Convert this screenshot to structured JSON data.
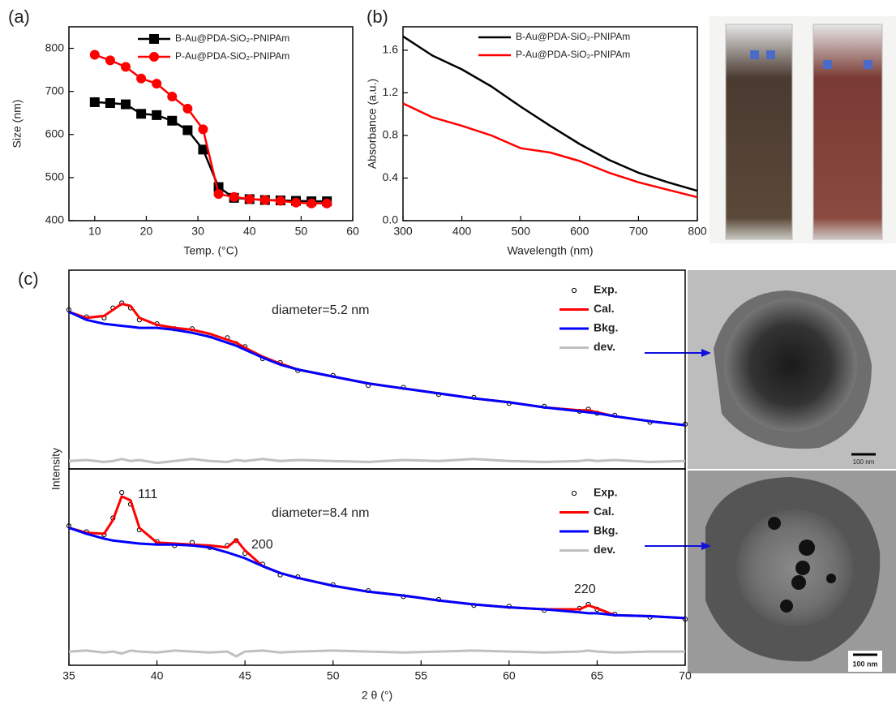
{
  "chart_data": [
    {
      "type": "line",
      "label": "(a)",
      "x_label": "Temp. (°C)",
      "y_label": "Size (nm)",
      "x": [
        10,
        13,
        16,
        19,
        22,
        25,
        28,
        31,
        34,
        37,
        40,
        43,
        46,
        49,
        52,
        55
      ],
      "xlim": [
        5,
        60
      ],
      "xticks": [
        10,
        20,
        30,
        40,
        50,
        60
      ],
      "ylim": [
        400,
        850
      ],
      "yticks": [
        400,
        500,
        600,
        700,
        800
      ],
      "legend": "upper right",
      "series": [
        {
          "name": "B-Au@PDA-SiO₂-PNIPAm",
          "color": "#000000",
          "marker": "square",
          "line_width": 2.5,
          "values": [
            675,
            673,
            670,
            648,
            645,
            632,
            610,
            565,
            478,
            453,
            450,
            448,
            447,
            446,
            445,
            445
          ]
        },
        {
          "name": "P-Au@PDA-SiO₂-PNIPAm",
          "color": "#ff0000",
          "marker": "circle",
          "line_width": 2.5,
          "values": [
            785,
            772,
            757,
            730,
            718,
            688,
            660,
            612,
            462,
            455,
            450,
            448,
            446,
            442,
            440,
            440
          ]
        }
      ]
    },
    {
      "type": "line",
      "label": "(b)",
      "x_label": "Wavelength (nm)",
      "y_label": "Absorbance (a.u.)",
      "x": [
        300,
        350,
        400,
        450,
        500,
        550,
        600,
        650,
        700,
        750,
        800
      ],
      "xlim": [
        300,
        800
      ],
      "xticks": [
        300,
        400,
        500,
        600,
        700,
        800
      ],
      "ylim": [
        0,
        1.82
      ],
      "yticks": [
        {
          "value": 0,
          "label": "0.0"
        },
        0.4,
        0.8,
        1.2,
        1.6
      ],
      "legend": "upper right",
      "series": [
        {
          "name": "B-Au@PDA-SiO₂-PNIPAm",
          "color": "#000000",
          "line_width": 2.5,
          "values": [
            1.73,
            1.55,
            1.42,
            1.26,
            1.07,
            0.89,
            0.72,
            0.57,
            0.45,
            0.36,
            0.28
          ]
        },
        {
          "name": "P-Au@PDA-SiO₂-PNIPAm",
          "color": "#ff0000",
          "line_width": 2.5,
          "values": [
            1.1,
            0.97,
            0.89,
            0.8,
            0.68,
            0.64,
            0.56,
            0.45,
            0.36,
            0.29,
            0.22
          ]
        }
      ]
    },
    {
      "type": "line",
      "label": "(c)",
      "annotations": [
        "diameter=5.2 nm"
      ],
      "x": [
        35,
        36,
        37,
        37.5,
        38,
        38.5,
        39,
        40,
        41,
        42,
        43,
        44,
        44.5,
        45,
        46,
        47,
        48,
        50,
        52,
        54,
        56,
        58,
        60,
        62,
        64,
        64.5,
        65,
        66,
        68,
        70
      ],
      "xlim": [
        35,
        70
      ],
      "ylim": [
        0,
        100
      ],
      "legend": "upper right",
      "series": [
        {
          "name": "Exp.",
          "color": "#000000",
          "marker": "open-circle",
          "line": false,
          "values": [
            80,
            76.5,
            76,
            81,
            83.5,
            81,
            75,
            73,
            70.5,
            70.5,
            67,
            66,
            63,
            61.5,
            55.5,
            53.5,
            49.5,
            47,
            42,
            41,
            37.5,
            36,
            33,
            31.5,
            29,
            30,
            28,
            27,
            23.5,
            22.5
          ]
        },
        {
          "name": "Cal.",
          "color": "#ff0000",
          "line_width": 3,
          "values": [
            79,
            76,
            77,
            80,
            83,
            82,
            76,
            72.5,
            71,
            70,
            68,
            65,
            63.5,
            61,
            56.5,
            53,
            50,
            46.5,
            43,
            40.5,
            38,
            35.5,
            33.5,
            31,
            29.5,
            29.5,
            28.5,
            26.5,
            24,
            22
          ]
        },
        {
          "name": "Bkg.",
          "color": "#0000ff",
          "line_width": 3,
          "values": [
            79,
            75,
            73,
            72.5,
            72,
            71.5,
            71,
            71,
            70,
            68.5,
            66.5,
            63.5,
            62,
            60,
            56,
            52.5,
            50,
            46.5,
            43,
            40.5,
            38,
            35.5,
            33.5,
            31,
            29,
            28.5,
            28,
            26.5,
            24,
            22
          ]
        },
        {
          "name": "dev.",
          "color": "#c0c0c0",
          "line_width": 3,
          "values": [
            4,
            4.5,
            3.5,
            4,
            5,
            4,
            4.5,
            3,
            4,
            5,
            4,
            3.5,
            4.5,
            4,
            5,
            4,
            4.5,
            4,
            3.5,
            4.5,
            4,
            5,
            4,
            3.5,
            4,
            4.5,
            4,
            4.5,
            3.5,
            4
          ]
        }
      ]
    },
    {
      "type": "line",
      "x_label": "2 θ (°)",
      "annotations": [
        "diameter=8.4 nm",
        "111",
        "200",
        "220"
      ],
      "x": [
        35,
        36,
        37,
        37.5,
        38,
        38.5,
        39,
        40,
        41,
        42,
        43,
        44,
        44.5,
        45,
        46,
        47,
        48,
        50,
        52,
        54,
        56,
        58,
        60,
        62,
        64,
        64.5,
        65,
        66,
        68,
        70
      ],
      "xlim": [
        35,
        70
      ],
      "xticks": [
        35,
        40,
        45,
        50,
        55,
        60,
        65,
        70
      ],
      "ylim": [
        0,
        100
      ],
      "legend": "upper right",
      "series": [
        {
          "name": "Exp.",
          "color": "#000000",
          "marker": "open-circle",
          "line": false,
          "values": [
            71,
            68,
            66.5,
            75,
            88,
            82,
            69,
            63,
            61,
            62.5,
            60,
            61,
            63.5,
            57,
            51.5,
            46,
            45,
            41,
            38,
            35,
            33.5,
            30.5,
            30,
            28,
            29,
            31,
            28.5,
            26,
            24.5,
            23.5
          ]
        },
        {
          "name": "Cal.",
          "color": "#ff0000",
          "line_width": 3,
          "values": [
            70,
            67.5,
            67,
            74,
            86,
            84,
            70,
            62.5,
            62,
            61.5,
            61,
            60,
            64,
            58.5,
            50.5,
            47,
            44.5,
            40.5,
            37.5,
            35.5,
            33,
            31,
            29.5,
            28.5,
            28.5,
            30.5,
            29,
            25.5,
            25,
            24
          ]
        },
        {
          "name": "Bkg.",
          "color": "#0000ff",
          "line_width": 3,
          "values": [
            70,
            67,
            64.5,
            63.5,
            63,
            62.5,
            62,
            61.5,
            61.5,
            61,
            60,
            57.5,
            56,
            54.5,
            50.5,
            47,
            44.5,
            40.5,
            37.5,
            35.5,
            33,
            31,
            29.5,
            28.5,
            27,
            26.5,
            26.5,
            25.5,
            25,
            24
          ]
        },
        {
          "name": "dev.",
          "color": "#c0c0c0",
          "line_width": 3,
          "values": [
            7,
            7.5,
            6.5,
            7,
            6,
            7.5,
            7,
            6.5,
            7.5,
            7,
            6.5,
            7,
            4.5,
            7,
            7.5,
            6.5,
            7,
            7.5,
            7,
            6.5,
            7,
            7.5,
            7,
            6.5,
            7,
            7.5,
            7,
            6.5,
            7,
            7
          ]
        }
      ]
    }
  ],
  "figure": {
    "y_label": "Intensity",
    "scale_bars": [
      "100 nm",
      "100 nm"
    ]
  }
}
